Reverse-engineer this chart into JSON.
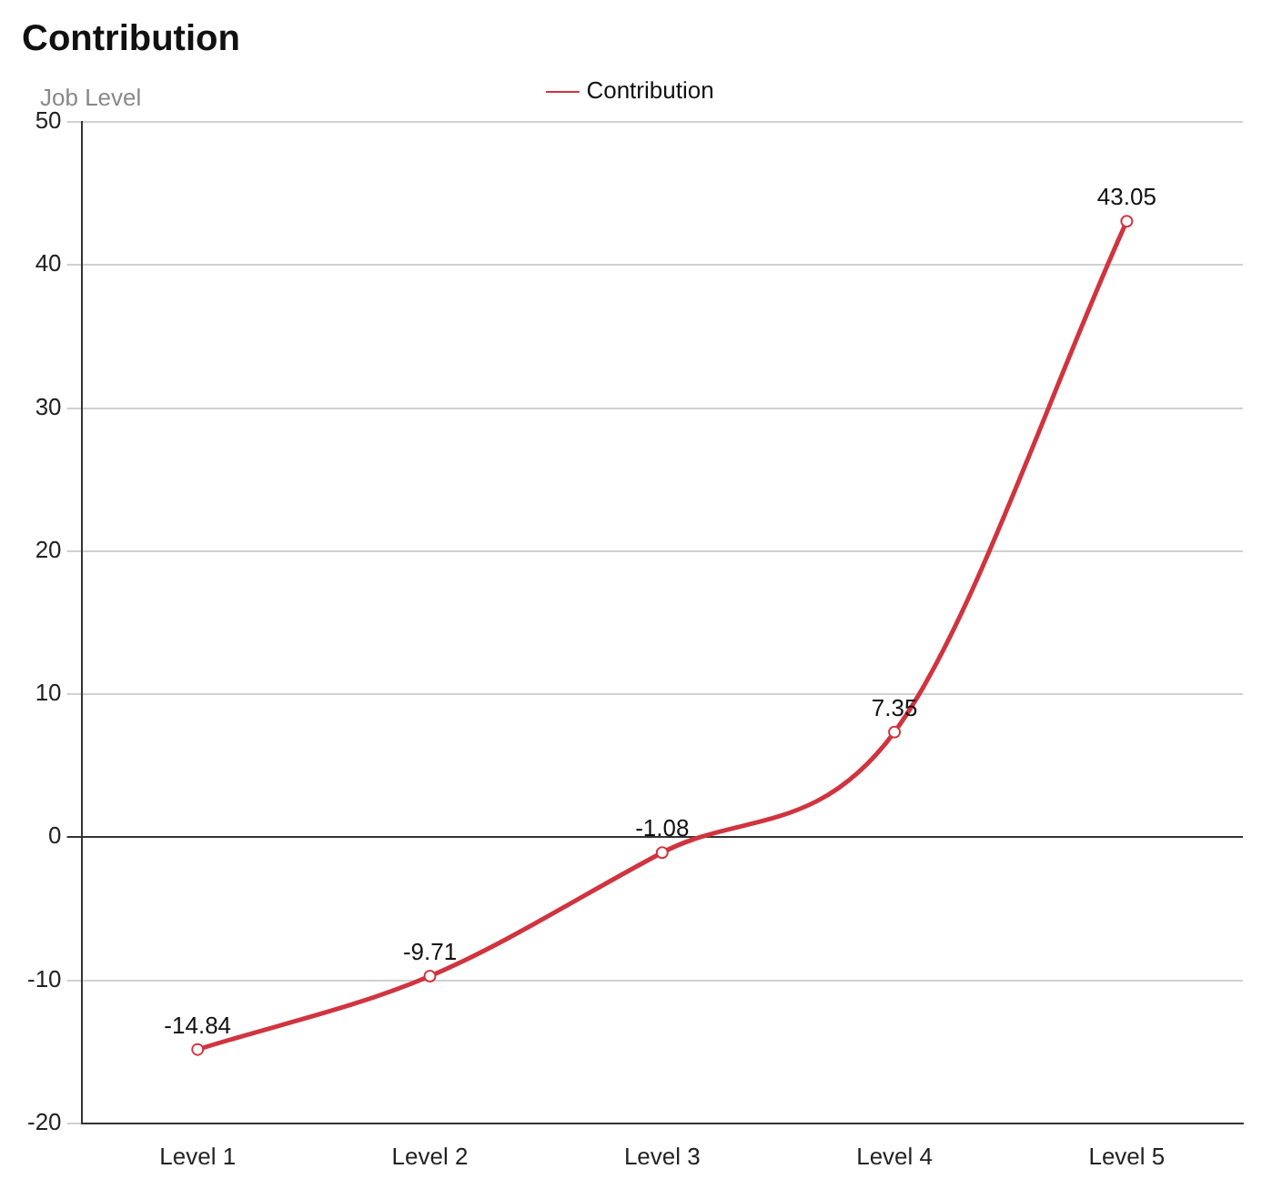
{
  "chart_data": {
    "type": "line",
    "title": "Contribution",
    "ylabel": "Job Level",
    "categories": [
      "Level 1",
      "Level 2",
      "Level 3",
      "Level 4",
      "Level 5"
    ],
    "series": [
      {
        "name": "Contribution",
        "color": "#d0343f",
        "values": [
          -14.84,
          -9.71,
          -1.08,
          7.35,
          43.05
        ]
      }
    ],
    "ylim": [
      -20,
      50
    ],
    "yticks": [
      -20,
      -10,
      0,
      10,
      20,
      30,
      40,
      50
    ],
    "grid": "y",
    "legend": "top",
    "marker": "circle",
    "data_labels": true
  }
}
